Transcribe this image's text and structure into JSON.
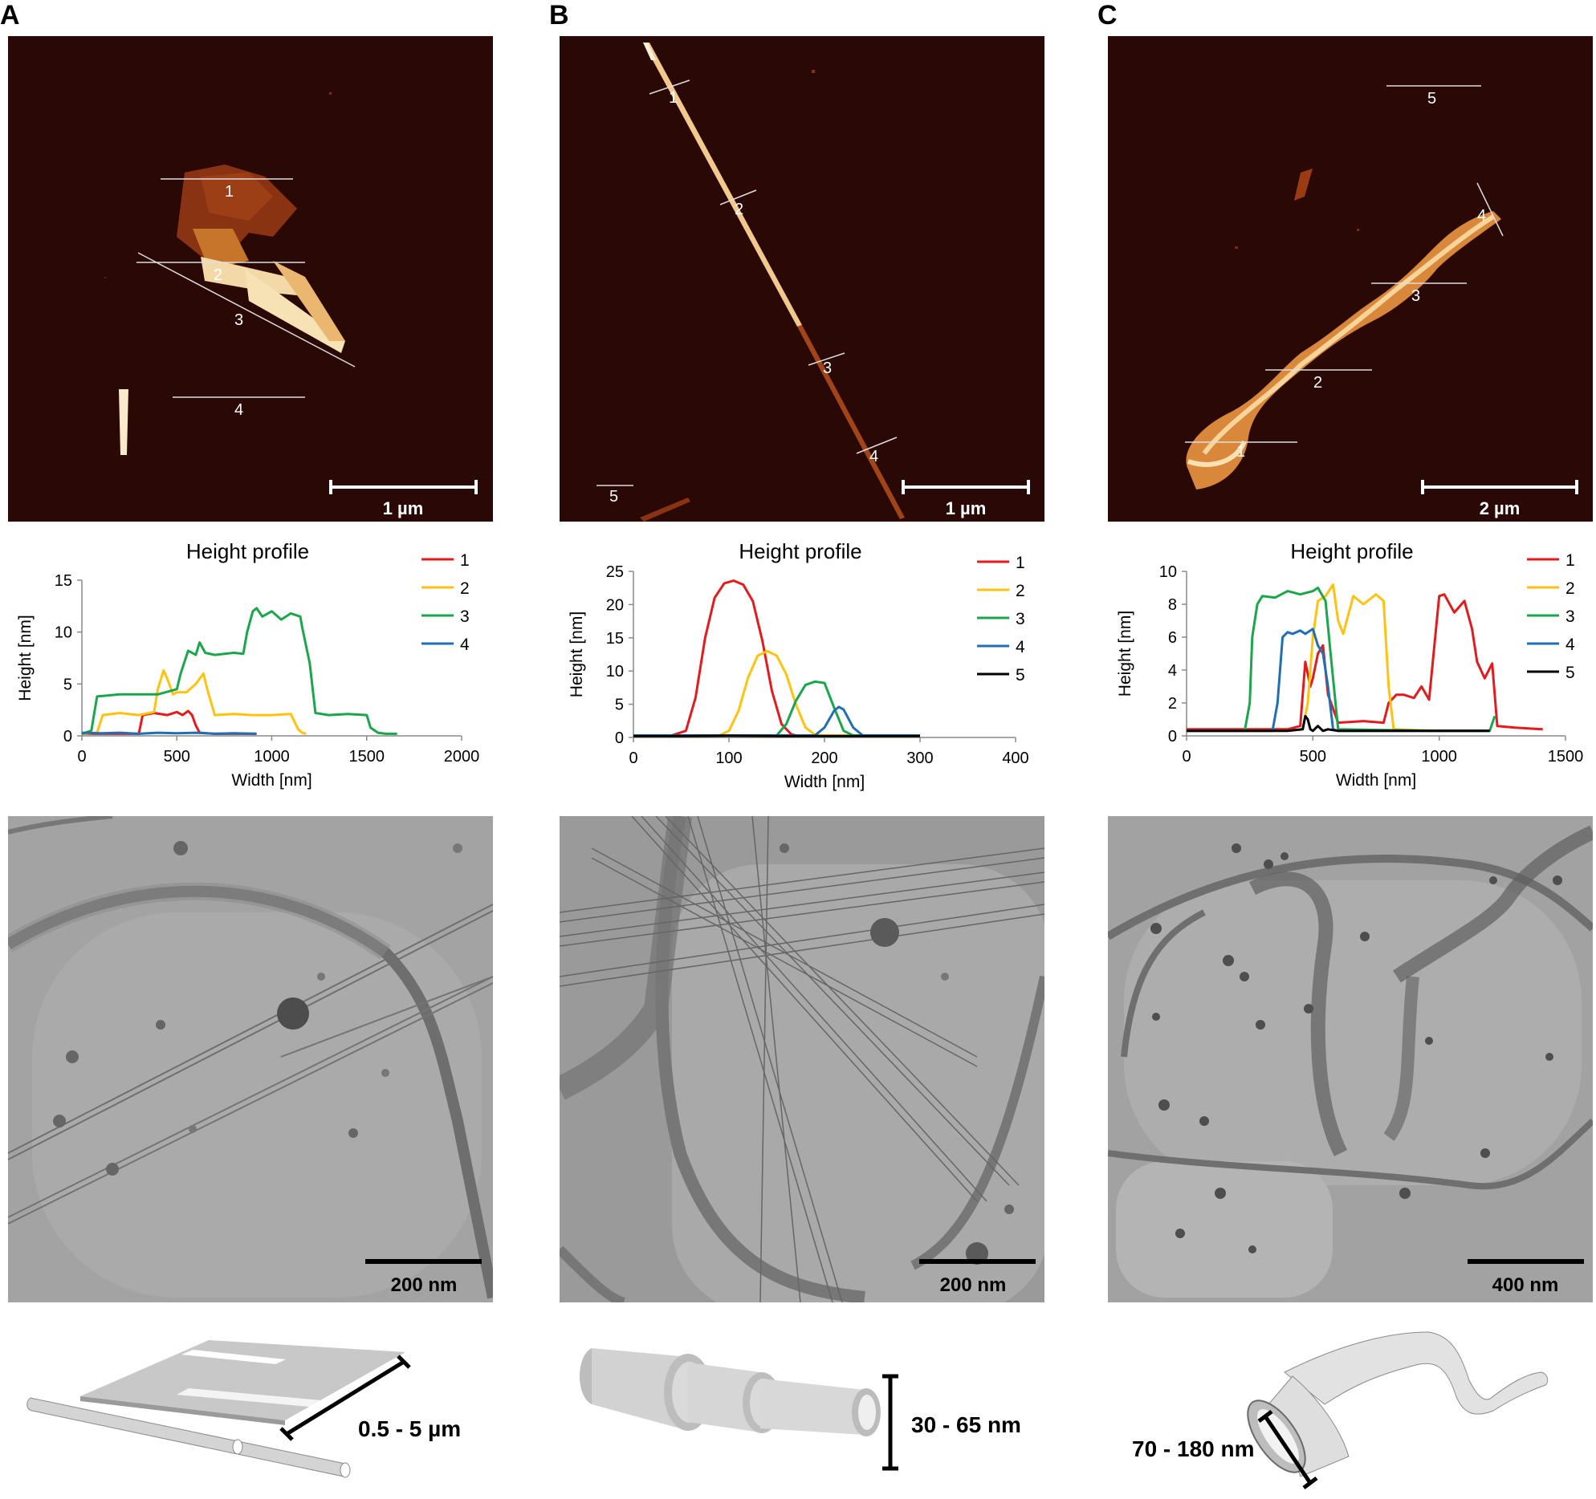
{
  "panels": [
    {
      "id": "A",
      "label": "A",
      "afm_scale": "1 µm",
      "afm_lines": [
        "1",
        "2",
        "3",
        "4"
      ],
      "tem_scale": "200 nm",
      "dimension": "0.5 - 5 µm"
    },
    {
      "id": "B",
      "label": "B",
      "afm_scale": "1 µm",
      "afm_lines": [
        "1",
        "2",
        "3",
        "4",
        "5"
      ],
      "tem_scale": "200 nm",
      "dimension": "30 - 65 nm"
    },
    {
      "id": "C",
      "label": "C",
      "afm_scale": "2 µm",
      "afm_lines": [
        "1",
        "2",
        "3",
        "4",
        "5"
      ],
      "tem_scale": "400 nm",
      "dimension": "70 - 180 nm"
    }
  ],
  "colors": {
    "s1": "#e41a1c",
    "s2": "#ffc20e",
    "s3": "#1aa64a",
    "s4": "#1f6fb2",
    "s5": "#000000",
    "afm_bg": "#2a0805",
    "tem_bg": "#a9a9a9"
  },
  "chart_data": [
    {
      "type": "line",
      "title": "Height profile",
      "xlabel": "Width [nm]",
      "ylabel": "Height [nm]",
      "xlim": [
        0,
        2000
      ],
      "ylim": [
        0,
        15
      ],
      "xticks": [
        0,
        500,
        1000,
        1500,
        2000
      ],
      "yticks": [
        0,
        5,
        10,
        15
      ],
      "legend_position": "right",
      "series": [
        {
          "name": "1",
          "x": [
            0,
            300,
            320,
            380,
            450,
            500,
            530,
            560,
            580,
            600,
            620,
            700,
            920
          ],
          "y": [
            0.2,
            0.2,
            2.0,
            2.2,
            2.0,
            2.3,
            2.0,
            2.4,
            2.0,
            1.0,
            0.3,
            0.2,
            0.2
          ]
        },
        {
          "name": "2",
          "x": [
            0,
            80,
            110,
            200,
            300,
            380,
            400,
            430,
            450,
            480,
            500,
            550,
            600,
            640,
            660,
            700,
            800,
            900,
            1000,
            1100,
            1140,
            1160,
            1180
          ],
          "y": [
            0.2,
            0.3,
            2.0,
            2.2,
            2.0,
            2.3,
            4.5,
            6.3,
            5.5,
            4.0,
            4.2,
            4.2,
            5.0,
            6.0,
            4.5,
            2.0,
            2.1,
            2.0,
            2.0,
            2.1,
            0.6,
            0.3,
            0.2
          ]
        },
        {
          "name": "3",
          "x": [
            0,
            50,
            80,
            200,
            400,
            500,
            520,
            560,
            600,
            620,
            650,
            700,
            800,
            850,
            870,
            900,
            920,
            950,
            1000,
            1050,
            1100,
            1150,
            1160,
            1200,
            1230,
            1300,
            1400,
            1500,
            1520,
            1560,
            1600,
            1660
          ],
          "y": [
            0.2,
            0.5,
            3.8,
            4.0,
            4.0,
            4.5,
            6.0,
            8.2,
            7.8,
            9.0,
            8.0,
            7.8,
            8.0,
            7.9,
            10.0,
            12.0,
            12.3,
            11.5,
            12.0,
            11.2,
            11.8,
            11.5,
            10.5,
            7.0,
            2.2,
            2.0,
            2.1,
            2.0,
            0.8,
            0.3,
            0.2,
            0.2
          ]
        },
        {
          "name": "4",
          "x": [
            0,
            100,
            200,
            300,
            400,
            500,
            600,
            700,
            800,
            920
          ],
          "y": [
            0.3,
            0.25,
            0.3,
            0.2,
            0.3,
            0.25,
            0.3,
            0.2,
            0.25,
            0.2
          ]
        }
      ]
    },
    {
      "type": "line",
      "title": "Height profile",
      "xlabel": "Width [nm]",
      "ylabel": "Height [nm]",
      "xlim": [
        0,
        400
      ],
      "ylim": [
        0,
        25
      ],
      "xticks": [
        0,
        100,
        200,
        300,
        400
      ],
      "yticks": [
        0,
        5,
        10,
        15,
        20,
        25
      ],
      "legend_position": "right",
      "series": [
        {
          "name": "1",
          "x": [
            0,
            40,
            55,
            65,
            75,
            85,
            95,
            105,
            115,
            125,
            135,
            145,
            155,
            165,
            170,
            180,
            200,
            300
          ],
          "y": [
            0.3,
            0.3,
            1.0,
            6.0,
            15.0,
            21.0,
            23.2,
            23.6,
            23.0,
            20.5,
            14.5,
            7.0,
            2.0,
            0.5,
            0.3,
            0.3,
            0.3,
            0.3
          ]
        },
        {
          "name": "2",
          "x": [
            0,
            90,
            100,
            110,
            120,
            130,
            140,
            150,
            160,
            170,
            180,
            190,
            200,
            300
          ],
          "y": [
            0.3,
            0.3,
            1.0,
            4.0,
            9.0,
            12.3,
            13.0,
            12.3,
            9.5,
            5.0,
            1.5,
            0.4,
            0.3,
            0.3
          ]
        },
        {
          "name": "3",
          "x": [
            0,
            150,
            160,
            170,
            180,
            190,
            200,
            210,
            220,
            230,
            300
          ],
          "y": [
            0.3,
            0.3,
            2.0,
            5.5,
            7.9,
            8.4,
            8.2,
            4.5,
            1.0,
            0.3,
            0.3
          ]
        },
        {
          "name": "4",
          "x": [
            0,
            190,
            200,
            210,
            215,
            220,
            230,
            240,
            300
          ],
          "y": [
            0.3,
            0.3,
            1.5,
            4.0,
            4.6,
            4.2,
            1.5,
            0.3,
            0.3
          ]
        },
        {
          "name": "5",
          "x": [
            0,
            50,
            100,
            150,
            200,
            250,
            300
          ],
          "y": [
            0.2,
            0.2,
            0.25,
            0.2,
            0.2,
            0.2,
            0.2
          ]
        }
      ]
    },
    {
      "type": "line",
      "title": "Height profile",
      "xlabel": "Width [nm]",
      "ylabel": "Height [nm]",
      "xlim": [
        0,
        1500
      ],
      "ylim": [
        0,
        10
      ],
      "xticks": [
        0,
        500,
        1000,
        1500
      ],
      "yticks": [
        0,
        2,
        4,
        6,
        8,
        10
      ],
      "legend_position": "right",
      "series": [
        {
          "name": "1",
          "x": [
            0,
            200,
            400,
            450,
            470,
            490,
            500,
            520,
            540,
            560,
            600,
            700,
            780,
            800,
            830,
            860,
            900,
            930,
            960,
            1000,
            1020,
            1060,
            1100,
            1130,
            1150,
            1180,
            1210,
            1230,
            1300,
            1410
          ],
          "y": [
            0.4,
            0.4,
            0.4,
            0.6,
            4.5,
            3.0,
            3.5,
            5.0,
            5.5,
            2.5,
            0.8,
            0.9,
            0.8,
            2.0,
            2.5,
            2.5,
            2.3,
            3.0,
            2.2,
            8.5,
            8.6,
            7.5,
            8.2,
            6.5,
            4.5,
            3.5,
            4.4,
            0.6,
            0.5,
            0.4
          ]
        },
        {
          "name": "2",
          "x": [
            0,
            400,
            460,
            480,
            500,
            520,
            550,
            580,
            600,
            620,
            660,
            700,
            750,
            780,
            800,
            820,
            1000,
            1200
          ],
          "y": [
            0.3,
            0.3,
            0.4,
            2.0,
            6.0,
            8.2,
            8.5,
            9.2,
            7.0,
            6.2,
            8.5,
            8.0,
            8.6,
            8.2,
            3.0,
            0.4,
            0.3,
            0.3
          ]
        },
        {
          "name": "3",
          "x": [
            0,
            230,
            250,
            260,
            280,
            300,
            350,
            400,
            450,
            500,
            520,
            550,
            570,
            600,
            1000,
            1200,
            1220
          ],
          "y": [
            0.3,
            0.3,
            2.0,
            6.0,
            8.0,
            8.5,
            8.4,
            8.8,
            8.6,
            8.8,
            9.0,
            8.2,
            5.0,
            0.4,
            0.3,
            0.3,
            1.2
          ]
        },
        {
          "name": "4",
          "x": [
            0,
            340,
            360,
            380,
            400,
            420,
            450,
            470,
            500,
            520,
            540,
            560,
            580,
            600,
            1200
          ],
          "y": [
            0.3,
            0.3,
            2.0,
            6.0,
            6.3,
            6.2,
            6.4,
            6.2,
            6.5,
            5.5,
            5.0,
            3.0,
            0.4,
            0.3,
            0.3
          ]
        },
        {
          "name": "5",
          "x": [
            0,
            200,
            300,
            400,
            460,
            470,
            480,
            490,
            500,
            520,
            540,
            560,
            600,
            800,
            1000,
            1200
          ],
          "y": [
            0.3,
            0.3,
            0.3,
            0.3,
            0.4,
            1.2,
            1.0,
            0.4,
            0.3,
            0.6,
            0.3,
            0.4,
            0.3,
            0.3,
            0.3,
            0.3
          ]
        }
      ]
    }
  ]
}
